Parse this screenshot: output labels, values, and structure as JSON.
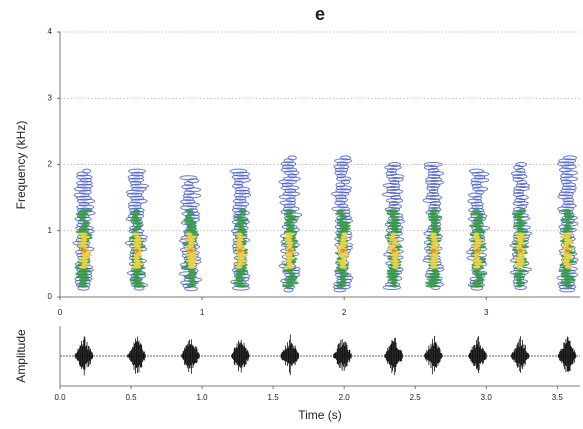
{
  "chart_data": [
    {
      "type": "spectrogram",
      "title": "e",
      "ylabel": "Frequency (kHz)",
      "x": [
        0.17,
        0.54,
        0.92,
        1.27,
        1.62,
        1.99,
        2.35,
        2.63,
        2.94,
        3.24,
        3.57
      ],
      "values": [
        1.9,
        1.9,
        1.8,
        1.9,
        2.1,
        2.1,
        2.0,
        2.0,
        1.9,
        2.0,
        2.1
      ],
      "xlim": [
        0,
        3.66
      ],
      "ylim": [
        0,
        4
      ],
      "xticks": [
        0,
        1,
        2,
        3
      ],
      "yticks": [
        0,
        1,
        2,
        3,
        4
      ],
      "grid": true
    },
    {
      "type": "waveform",
      "ylabel": "Amplitude",
      "xlabel": "Time (s)",
      "x": [
        0.17,
        0.54,
        0.92,
        1.27,
        1.62,
        1.99,
        2.35,
        2.63,
        2.94,
        3.24,
        3.57
      ],
      "xlim": [
        0,
        3.66
      ],
      "xticks": [
        {
          "value": 0,
          "label": "0.0"
        },
        {
          "value": 0.5,
          "label": "0.5"
        },
        {
          "value": 1,
          "label": "1.0"
        },
        {
          "value": 1.5,
          "label": "1.5"
        },
        {
          "value": 2,
          "label": "2.0"
        },
        {
          "value": 2.5,
          "label": "2.5"
        },
        {
          "value": 3,
          "label": "3.0"
        },
        {
          "value": 3.5,
          "label": "3.5"
        }
      ]
    }
  ]
}
